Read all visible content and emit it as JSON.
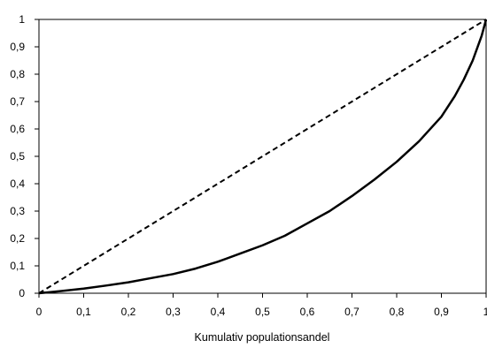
{
  "chart_data": {
    "type": "line",
    "xlabel": "Kumulativ populationsandel",
    "ylabel": "",
    "xlim": [
      0,
      1
    ],
    "ylim": [
      0,
      1
    ],
    "x_ticks": [
      "0",
      "0,1",
      "0,2",
      "0,3",
      "0,4",
      "0,5",
      "0,6",
      "0,7",
      "0,8",
      "0,9",
      "1"
    ],
    "y_ticks": [
      "0",
      "0,1",
      "0,2",
      "0,3",
      "0,4",
      "0,5",
      "0,6",
      "0,7",
      "0,8",
      "0,9",
      "1"
    ],
    "grid": false,
    "legend": "none",
    "series": [
      {
        "style": "dashed",
        "color": "#000000",
        "x": [
          0,
          1
        ],
        "y": [
          0,
          1
        ]
      },
      {
        "style": "solid",
        "color": "#000000",
        "x": [
          0,
          0.05,
          0.1,
          0.15,
          0.2,
          0.25,
          0.3,
          0.35,
          0.4,
          0.45,
          0.5,
          0.55,
          0.6,
          0.65,
          0.7,
          0.75,
          0.8,
          0.85,
          0.9,
          0.93,
          0.95,
          0.97,
          0.99,
          1
        ],
        "y": [
          0,
          0.008,
          0.017,
          0.028,
          0.04,
          0.055,
          0.07,
          0.09,
          0.115,
          0.145,
          0.175,
          0.21,
          0.255,
          0.3,
          0.355,
          0.415,
          0.48,
          0.555,
          0.645,
          0.72,
          0.78,
          0.85,
          0.94,
          1
        ]
      }
    ]
  }
}
